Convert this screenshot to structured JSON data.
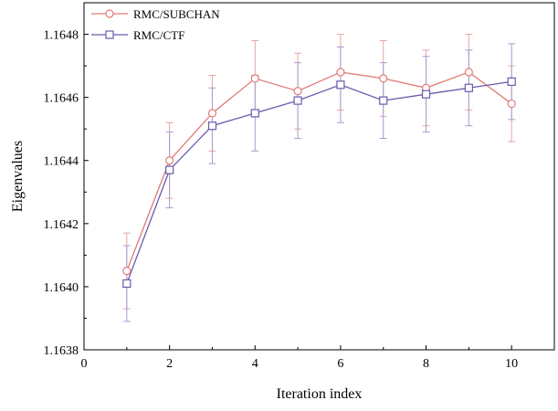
{
  "chart_data": {
    "type": "line",
    "xlabel": "Iteration index",
    "ylabel": "Eigenvalues",
    "xlim": [
      0,
      11
    ],
    "ylim": [
      1.1638,
      1.1649
    ],
    "x_ticks": [
      0,
      2,
      4,
      6,
      8,
      10
    ],
    "x_tick_labels": [
      "0",
      "2",
      "4",
      "6",
      "8",
      "10"
    ],
    "y_ticks": [
      1.1638,
      1.164,
      1.1642,
      1.1644,
      1.1646,
      1.1648
    ],
    "y_tick_labels": [
      "1.1638",
      "1.1640",
      "1.1642",
      "1.1644",
      "1.1646",
      "1.1648"
    ],
    "grid": false,
    "legend_position": "top-left",
    "series": [
      {
        "name": "RMC/SUBCHAN",
        "color": "#e07a76",
        "marker": "circle",
        "x": [
          1,
          2,
          3,
          4,
          5,
          6,
          7,
          8,
          9,
          10
        ],
        "y": [
          1.16405,
          1.1644,
          1.16455,
          1.16466,
          1.16462,
          1.16468,
          1.16466,
          1.16463,
          1.16468,
          1.16458
        ],
        "error": [
          0.00012,
          0.00012,
          0.00012,
          0.00012,
          0.00012,
          0.00012,
          0.00012,
          0.00012,
          0.00012,
          0.00012
        ]
      },
      {
        "name": "RMC/CTF",
        "color": "#6a5aad",
        "marker": "square",
        "x": [
          1,
          2,
          3,
          4,
          5,
          6,
          7,
          8,
          9,
          10
        ],
        "y": [
          1.16401,
          1.16437,
          1.16451,
          1.16455,
          1.16459,
          1.16464,
          1.16459,
          1.16461,
          1.16463,
          1.16465
        ],
        "error": [
          0.00012,
          0.00012,
          0.00012,
          0.00012,
          0.00012,
          0.00012,
          0.00012,
          0.00012,
          0.00012,
          0.00012
        ]
      }
    ]
  }
}
